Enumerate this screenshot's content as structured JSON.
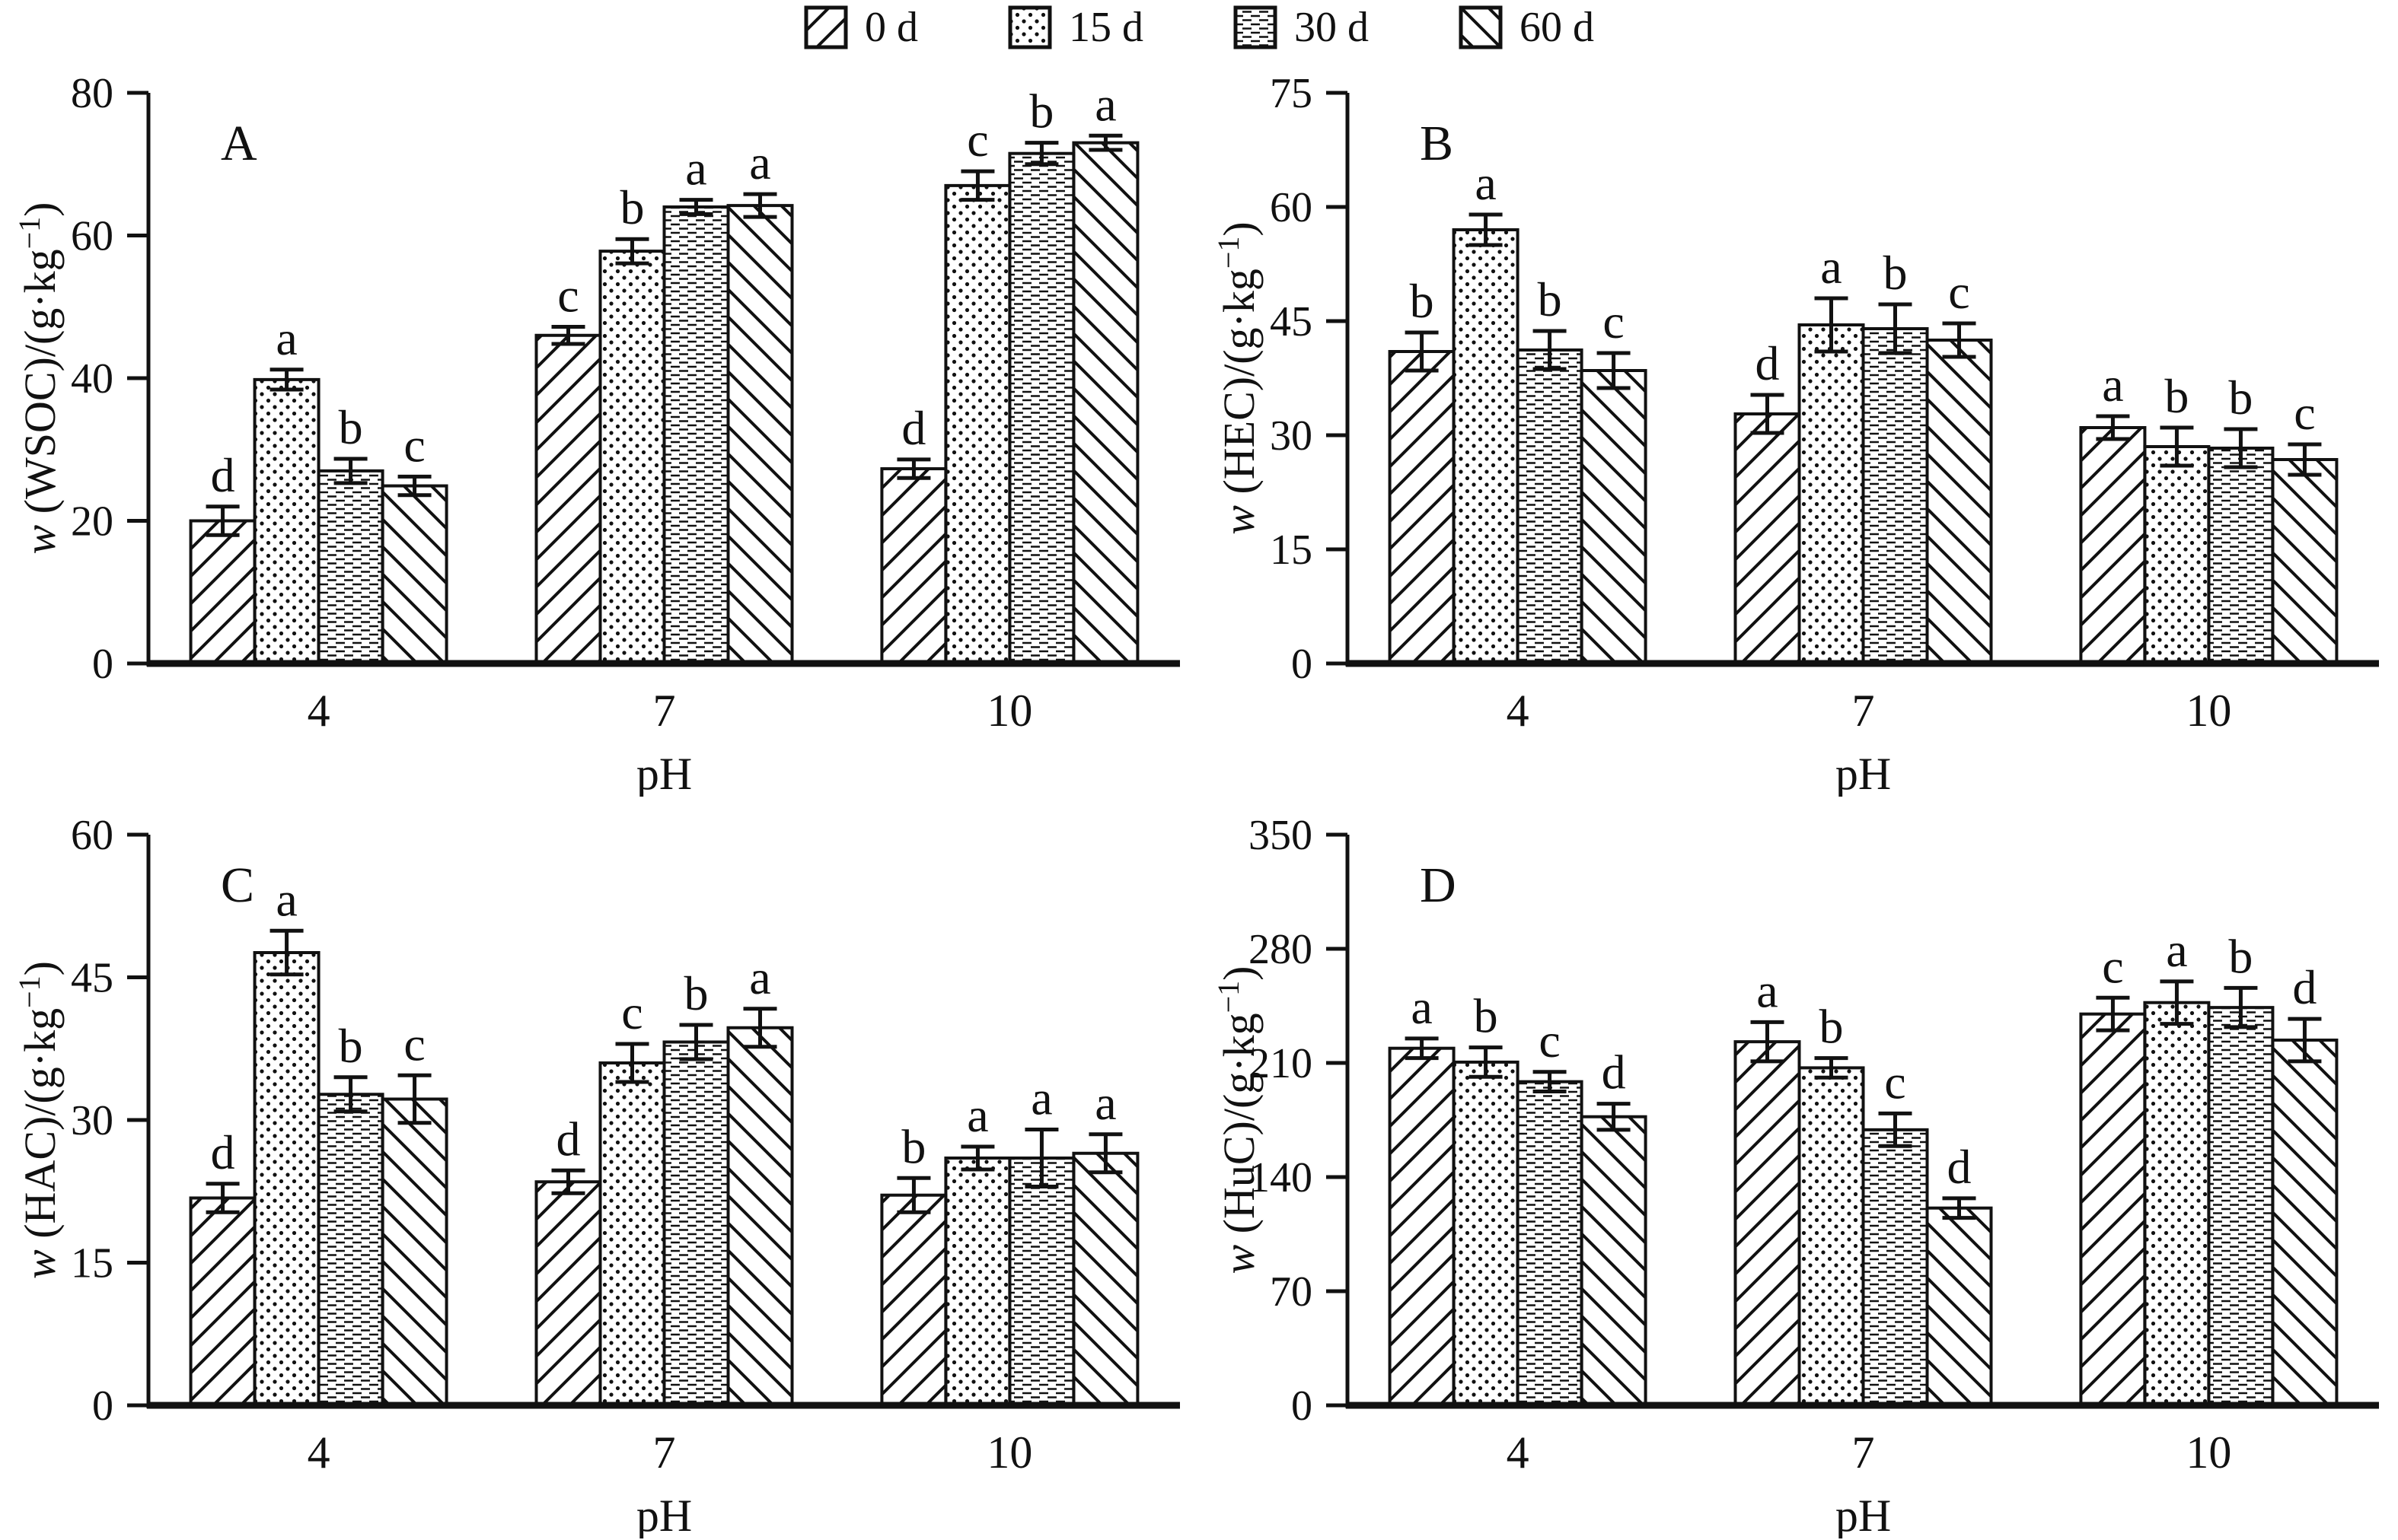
{
  "page": {
    "background": "#ffffff",
    "ink": "#111111"
  },
  "legend": {
    "items": [
      {
        "label": "0 d",
        "pattern": "hatch-forward"
      },
      {
        "label": "15 d",
        "pattern": "dots"
      },
      {
        "label": "30 d",
        "pattern": "dashes"
      },
      {
        "label": "60 d",
        "pattern": "hatch-back"
      }
    ]
  },
  "chart_data": [
    {
      "type": "bar",
      "panel_letter": "A",
      "ylabel": {
        "italic": "w",
        "main": " (WSOC)/(g·kg",
        "sup": "−1",
        "close": ")"
      },
      "xlabel": "pH",
      "categories": [
        "4",
        "7",
        "10"
      ],
      "ylim": [
        0,
        80
      ],
      "yticks": [
        0,
        20,
        40,
        60,
        80
      ],
      "grid": false,
      "legend_position": "top-center-shared",
      "series": [
        {
          "name": "0 d",
          "pattern": "hatch-forward",
          "values": [
            20.0,
            46.0,
            27.3
          ],
          "errors": [
            2.0,
            1.2,
            1.3
          ],
          "letters": [
            "d",
            "c",
            "d"
          ]
        },
        {
          "name": "15 d",
          "pattern": "dots",
          "values": [
            39.8,
            57.8,
            67.0
          ],
          "errors": [
            1.4,
            1.7,
            2.0
          ],
          "letters": [
            "a",
            "b",
            "c"
          ]
        },
        {
          "name": "30 d",
          "pattern": "dashes",
          "values": [
            27.0,
            64.0,
            71.5
          ],
          "errors": [
            1.7,
            1.0,
            1.5
          ],
          "letters": [
            "b",
            "a",
            "b"
          ]
        },
        {
          "name": "60 d",
          "pattern": "hatch-back",
          "values": [
            24.9,
            64.2,
            73.0
          ],
          "errors": [
            1.3,
            1.6,
            1.0
          ],
          "letters": [
            "c",
            "a",
            "a"
          ]
        }
      ]
    },
    {
      "type": "bar",
      "panel_letter": "B",
      "ylabel": {
        "italic": "w",
        "main": " (HEC)/(g·kg",
        "sup": "−1",
        "close": ")"
      },
      "xlabel": "pH",
      "categories": [
        "4",
        "7",
        "10"
      ],
      "ylim": [
        0,
        75
      ],
      "yticks": [
        0,
        15,
        30,
        45,
        60,
        75
      ],
      "grid": false,
      "legend_position": "top-center-shared",
      "series": [
        {
          "name": "0 d",
          "pattern": "hatch-forward",
          "values": [
            41.0,
            32.8,
            31.0
          ],
          "errors": [
            2.5,
            2.5,
            1.5
          ],
          "letters": [
            "b",
            "d",
            "a"
          ]
        },
        {
          "name": "15 d",
          "pattern": "dots",
          "values": [
            57.0,
            44.5,
            28.5
          ],
          "errors": [
            2.0,
            3.5,
            2.5
          ],
          "letters": [
            "a",
            "a",
            "b"
          ]
        },
        {
          "name": "30 d",
          "pattern": "dashes",
          "values": [
            41.2,
            44.0,
            28.3
          ],
          "errors": [
            2.5,
            3.2,
            2.5
          ],
          "letters": [
            "b",
            "b",
            "b"
          ]
        },
        {
          "name": "60 d",
          "pattern": "hatch-back",
          "values": [
            38.5,
            42.5,
            26.8
          ],
          "errors": [
            2.3,
            2.2,
            2.0
          ],
          "letters": [
            "c",
            "c",
            "c"
          ]
        }
      ]
    },
    {
      "type": "bar",
      "panel_letter": "C",
      "ylabel": {
        "italic": "w",
        "main": " (HAC)/(g·kg",
        "sup": "−1",
        "close": ")"
      },
      "xlabel": "pH",
      "categories": [
        "4",
        "7",
        "10"
      ],
      "ylim": [
        0,
        60
      ],
      "yticks": [
        0,
        15,
        30,
        45,
        60
      ],
      "grid": false,
      "legend_position": "top-center-shared",
      "series": [
        {
          "name": "0 d",
          "pattern": "hatch-forward",
          "values": [
            21.8,
            23.5,
            22.1
          ],
          "errors": [
            1.5,
            1.2,
            1.8
          ],
          "letters": [
            "d",
            "d",
            "b"
          ]
        },
        {
          "name": "15 d",
          "pattern": "dots",
          "values": [
            47.6,
            36.0,
            26.0
          ],
          "errors": [
            2.3,
            2.0,
            1.2
          ],
          "letters": [
            "a",
            "c",
            "a"
          ]
        },
        {
          "name": "30 d",
          "pattern": "dashes",
          "values": [
            32.7,
            38.2,
            26.0
          ],
          "errors": [
            1.8,
            1.8,
            3.0
          ],
          "letters": [
            "b",
            "b",
            "a"
          ]
        },
        {
          "name": "60 d",
          "pattern": "hatch-back",
          "values": [
            32.2,
            39.7,
            26.5
          ],
          "errors": [
            2.5,
            2.0,
            2.0
          ],
          "letters": [
            "c",
            "a",
            "a"
          ]
        }
      ]
    },
    {
      "type": "bar",
      "panel_letter": "D",
      "ylabel": {
        "italic": "w",
        "main": " (HuC)/(g·kg",
        "sup": "−1",
        "close": ")"
      },
      "xlabel": "pH",
      "categories": [
        "4",
        "7",
        "10"
      ],
      "ylim": [
        0,
        350
      ],
      "yticks": [
        0,
        70,
        140,
        210,
        280,
        350
      ],
      "grid": false,
      "legend_position": "top-center-shared",
      "series": [
        {
          "name": "0 d",
          "pattern": "hatch-forward",
          "values": [
            219.0,
            223.0,
            240.0
          ],
          "errors": [
            6.0,
            12.0,
            10.0
          ],
          "letters": [
            "a",
            "a",
            "c"
          ]
        },
        {
          "name": "15 d",
          "pattern": "dots",
          "values": [
            210.5,
            207.0,
            247.0
          ],
          "errors": [
            9.0,
            6.0,
            13.0
          ],
          "letters": [
            "b",
            "b",
            "a"
          ]
        },
        {
          "name": "30 d",
          "pattern": "dashes",
          "values": [
            198.5,
            169.0,
            244.0
          ],
          "errors": [
            6.0,
            10.0,
            12.0
          ],
          "letters": [
            "c",
            "c",
            "b"
          ]
        },
        {
          "name": "60 d",
          "pattern": "hatch-back",
          "values": [
            177.0,
            121.0,
            224.0
          ],
          "errors": [
            8.0,
            6.0,
            13.0
          ],
          "letters": [
            "d",
            "d",
            "d"
          ]
        }
      ]
    }
  ]
}
